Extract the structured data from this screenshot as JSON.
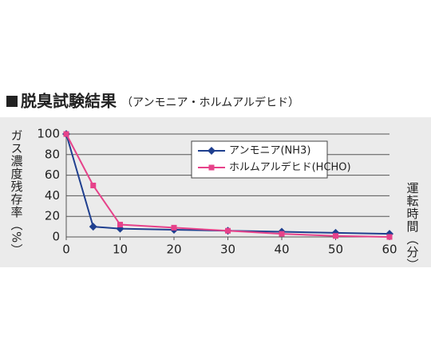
{
  "chart_data": {
    "type": "line",
    "title": "脱臭試験結果",
    "subtitle": "（アンモニア・ホルムアルデヒド）",
    "y_label": "ガス濃度残存率（%）",
    "x_label": "運転時間（分）",
    "x": [
      0,
      5,
      10,
      20,
      30,
      40,
      50,
      60
    ],
    "series": [
      {
        "name": "アンモニア(NH3)",
        "color": "#1f3f8f",
        "marker": "diamond",
        "values": [
          100,
          10,
          8,
          7,
          6,
          5,
          4,
          3
        ]
      },
      {
        "name": "ホルムアルデヒド(HCHO)",
        "color": "#e6428a",
        "marker": "square",
        "values": [
          100,
          50,
          12,
          9,
          6,
          3,
          1,
          0
        ]
      }
    ],
    "xlim": [
      0,
      60
    ],
    "xticks": [
      0,
      10,
      20,
      30,
      40,
      50,
      60
    ],
    "ylim": [
      0,
      100
    ],
    "yticks": [
      0,
      20,
      40,
      60,
      80,
      100
    ],
    "grid": true
  }
}
